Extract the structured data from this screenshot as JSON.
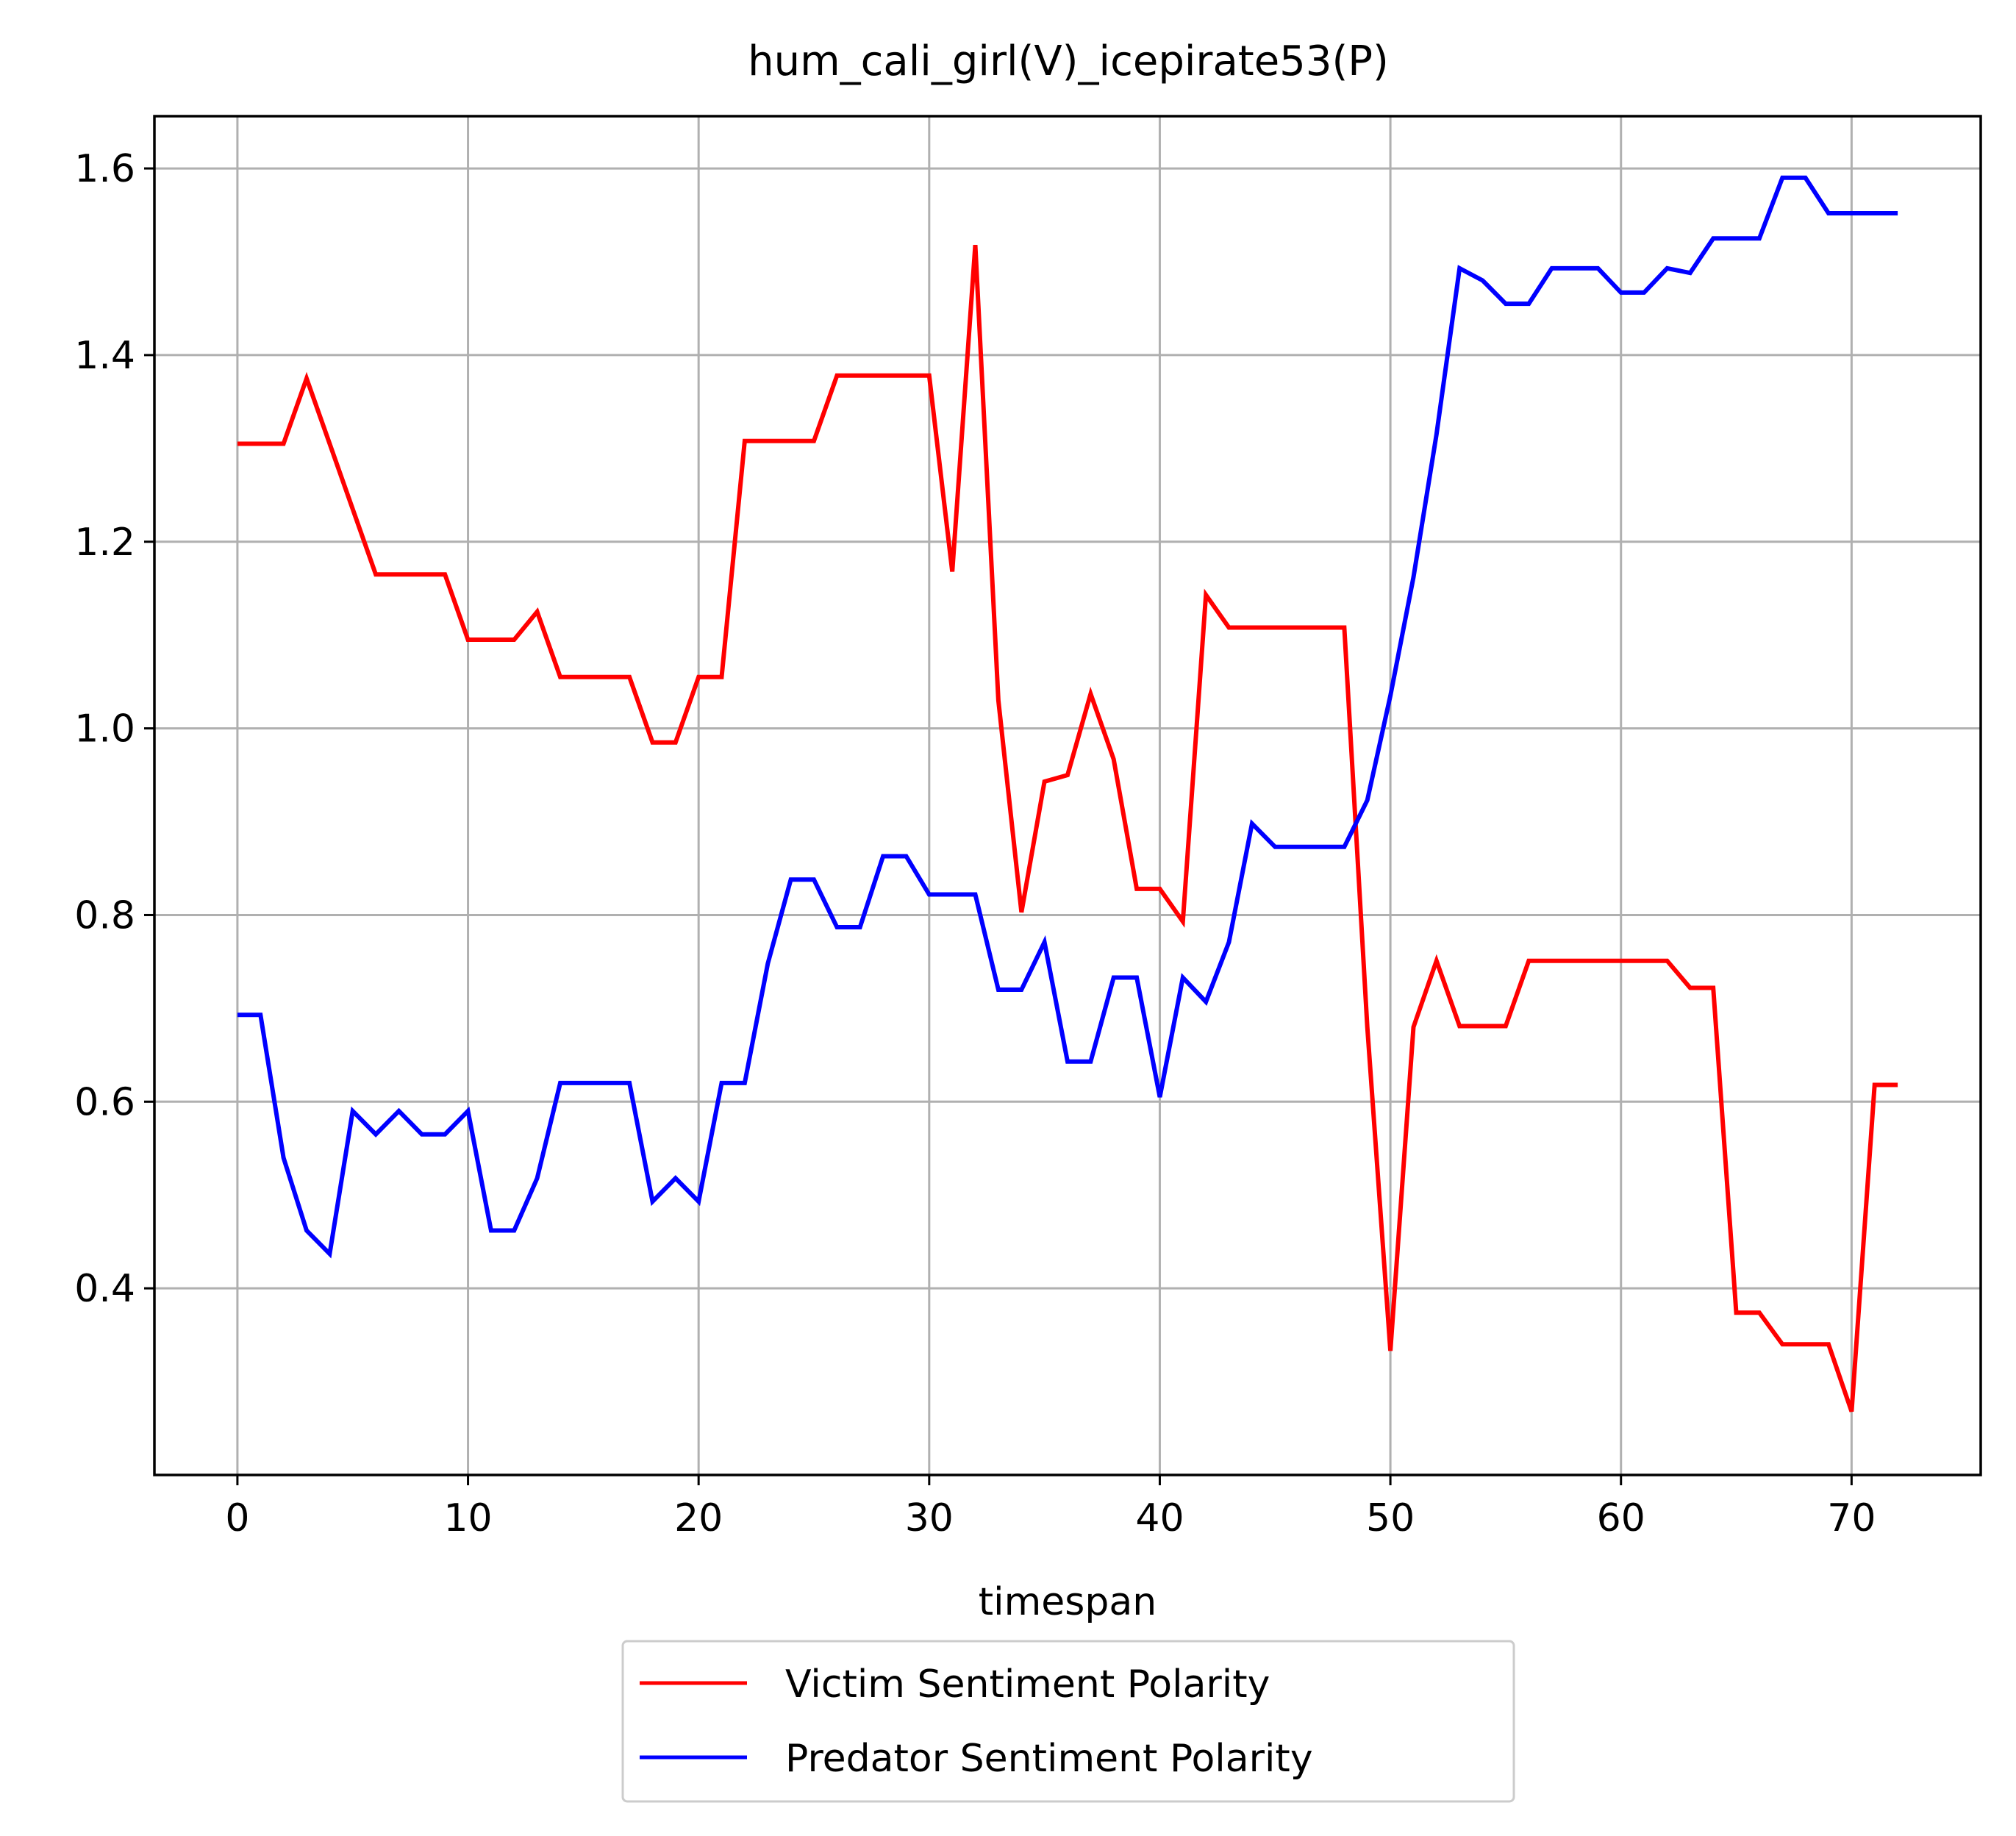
{
  "chart_data": {
    "type": "line",
    "title": "hum_cali_girl(V)_icepirate53(P)",
    "xlabel": "timespan",
    "ylabel": "",
    "xlim": [
      -3.6,
      75.6
    ],
    "ylim": [
      0.2,
      1.656
    ],
    "xticks": [
      0,
      10,
      20,
      30,
      40,
      50,
      60,
      70
    ],
    "yticks": [
      0.4,
      0.6,
      0.8,
      1.0,
      1.2,
      1.4,
      1.6
    ],
    "xtick_labels": [
      "0",
      "10",
      "20",
      "30",
      "40",
      "50",
      "60",
      "70"
    ],
    "ytick_labels": [
      "0.4",
      "0.6",
      "0.8",
      "1.0",
      "1.2",
      "1.4",
      "1.6"
    ],
    "grid": true,
    "legend_position": "below the plot, centered",
    "series": [
      {
        "name": "Victim Sentiment Polarity",
        "color": "#ff0000",
        "values": [
          1.305,
          1.305,
          1.305,
          1.375,
          1.305,
          1.235,
          1.165,
          1.165,
          1.165,
          1.165,
          1.095,
          1.095,
          1.095,
          1.125,
          1.055,
          1.055,
          1.055,
          1.055,
          0.985,
          0.985,
          1.055,
          1.055,
          1.308,
          1.308,
          1.308,
          1.308,
          1.378,
          1.378,
          1.378,
          1.378,
          1.378,
          1.168,
          1.518,
          1.03,
          0.803,
          0.943,
          0.95,
          1.037,
          0.967,
          0.828,
          0.828,
          0.793,
          1.143,
          1.108,
          1.108,
          1.108,
          1.108,
          1.108,
          1.108,
          0.68,
          0.333,
          0.68,
          0.751,
          0.681,
          0.681,
          0.681,
          0.751,
          0.751,
          0.751,
          0.751,
          0.751,
          0.751,
          0.751,
          0.722,
          0.722,
          0.374,
          0.374,
          0.34,
          0.34,
          0.34,
          0.268,
          0.618,
          0.618
        ]
      },
      {
        "name": "Predator Sentiment Polarity",
        "color": "#0000ff",
        "values": [
          0.693,
          0.693,
          0.54,
          0.462,
          0.437,
          0.59,
          0.565,
          0.59,
          0.565,
          0.565,
          0.59,
          0.462,
          0.462,
          0.518,
          0.62,
          0.62,
          0.62,
          0.62,
          0.493,
          0.518,
          0.493,
          0.62,
          0.62,
          0.748,
          0.838,
          0.838,
          0.787,
          0.787,
          0.863,
          0.863,
          0.822,
          0.822,
          0.822,
          0.72,
          0.72,
          0.771,
          0.643,
          0.643,
          0.733,
          0.733,
          0.605,
          0.733,
          0.707,
          0.771,
          0.898,
          0.873,
          0.873,
          0.873,
          0.873,
          0.923,
          1.035,
          1.162,
          1.315,
          1.493,
          1.48,
          1.455,
          1.455,
          1.493,
          1.493,
          1.493,
          1.467,
          1.467,
          1.493,
          1.488,
          1.525,
          1.525,
          1.525,
          1.59,
          1.59,
          1.552,
          1.552,
          1.552,
          1.552
        ]
      }
    ]
  }
}
